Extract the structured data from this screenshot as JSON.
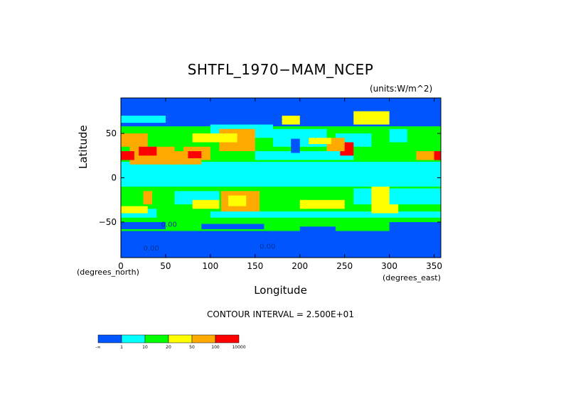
{
  "chart_data": {
    "type": "heatmap",
    "title": "SHTFL_1970−MAM_NCEP",
    "units": "(units:W/m^2)",
    "xlabel": "Longitude",
    "ylabel": "Latitude",
    "x_note": "(degrees_east)",
    "y_note": "(degrees_north)",
    "xlim": [
      0,
      357.5
    ],
    "ylim": [
      -90,
      90
    ],
    "x_ticks": [
      "0",
      "50",
      "100",
      "150",
      "200",
      "250",
      "300",
      "350"
    ],
    "x_tick_values": [
      0,
      50,
      100,
      150,
      200,
      250,
      300,
      350
    ],
    "y_ticks": [
      "50",
      "0",
      "−50"
    ],
    "y_tick_values": [
      50,
      0,
      -50
    ],
    "contour_interval": "CONTOUR INTERVAL = 2.500E+01",
    "colorbar": {
      "labels": [
        "-∞",
        "1",
        "10",
        "20",
        "50",
        "100",
        "10000"
      ],
      "colors": [
        "#0055ff",
        "#00ffff",
        "#00ff00",
        "#ffff00",
        "#ffaa00",
        "#ff0000"
      ]
    },
    "field_labels": [
      "0.00",
      "0.00",
      "0.00"
    ]
  }
}
